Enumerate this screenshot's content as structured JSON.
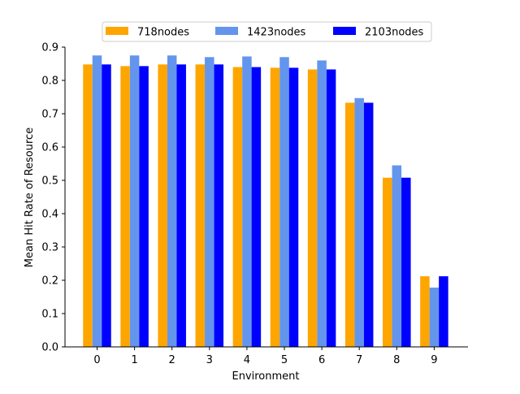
{
  "chart_data": {
    "type": "bar",
    "title": "",
    "xlabel": "Environment",
    "ylabel": "Mean Hit Rate of Resource",
    "categories": [
      "0",
      "1",
      "2",
      "3",
      "4",
      "5",
      "6",
      "7",
      "8",
      "9"
    ],
    "ylim": [
      0,
      0.9
    ],
    "yticks": [
      "0.0",
      "0.1",
      "0.2",
      "0.3",
      "0.4",
      "0.5",
      "0.6",
      "0.7",
      "0.8",
      "0.9"
    ],
    "grid": false,
    "legend_position": "top-center",
    "series": [
      {
        "name": "718nodes",
        "color": "#FFA500",
        "values": [
          0.848,
          0.843,
          0.848,
          0.848,
          0.84,
          0.838,
          0.833,
          0.733,
          0.508,
          0.212
        ]
      },
      {
        "name": "1423nodes",
        "color": "#6495ED",
        "values": [
          0.875,
          0.875,
          0.875,
          0.87,
          0.872,
          0.87,
          0.86,
          0.747,
          0.545,
          0.178
        ]
      },
      {
        "name": "2103nodes",
        "color": "#0000FF",
        "values": [
          0.848,
          0.843,
          0.848,
          0.848,
          0.84,
          0.838,
          0.833,
          0.733,
          0.508,
          0.212
        ]
      }
    ]
  }
}
